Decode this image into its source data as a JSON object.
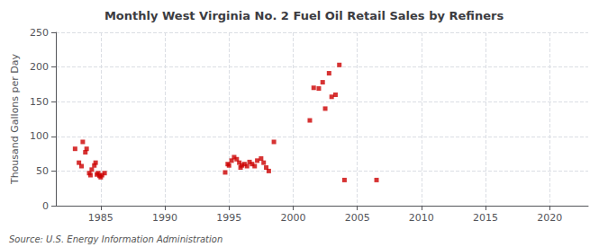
{
  "chart_data": {
    "type": "scatter",
    "title": "Monthly West Virginia No. 2 Fuel Oil Retail Sales by Refiners",
    "ylabel": "Thousand Gallons per Day",
    "annotations": [
      "Source: U.S. Energy Information Administration"
    ],
    "color": "#cc0000",
    "marker": "square",
    "grid": true,
    "xlim": [
      1981.5,
      2023
    ],
    "ylim": [
      0,
      250
    ],
    "xticks": [
      1985,
      1990,
      1995,
      2000,
      2005,
      2010,
      2015,
      2020
    ],
    "yticks": [
      0,
      50,
      100,
      150,
      200,
      250
    ],
    "x": [
      1983.0,
      1983.3,
      1983.5,
      1983.6,
      1983.8,
      1983.9,
      1984.1,
      1984.2,
      1984.3,
      1984.5,
      1984.6,
      1984.7,
      1984.8,
      1984.9,
      1985.0,
      1985.1,
      1985.3,
      1994.7,
      1994.9,
      1995.0,
      1995.2,
      1995.4,
      1995.6,
      1995.8,
      1995.9,
      1996.0,
      1996.2,
      1996.4,
      1996.6,
      1996.8,
      1997.0,
      1997.2,
      1997.5,
      1997.7,
      1997.9,
      1998.1,
      1998.5,
      2001.3,
      2001.6,
      2002.0,
      2002.3,
      2002.5,
      2002.8,
      2003.0,
      2003.3,
      2003.6,
      2004.0,
      2006.5
    ],
    "values": [
      82,
      62,
      57,
      92,
      77,
      82,
      47,
      44,
      52,
      58,
      62,
      45,
      47,
      43,
      41,
      44,
      47,
      48,
      60,
      58,
      65,
      70,
      67,
      62,
      55,
      58,
      60,
      57,
      63,
      60,
      57,
      65,
      68,
      62,
      55,
      50,
      92,
      123,
      170,
      169,
      178,
      140,
      191,
      157,
      160,
      203,
      37,
      37
    ]
  }
}
